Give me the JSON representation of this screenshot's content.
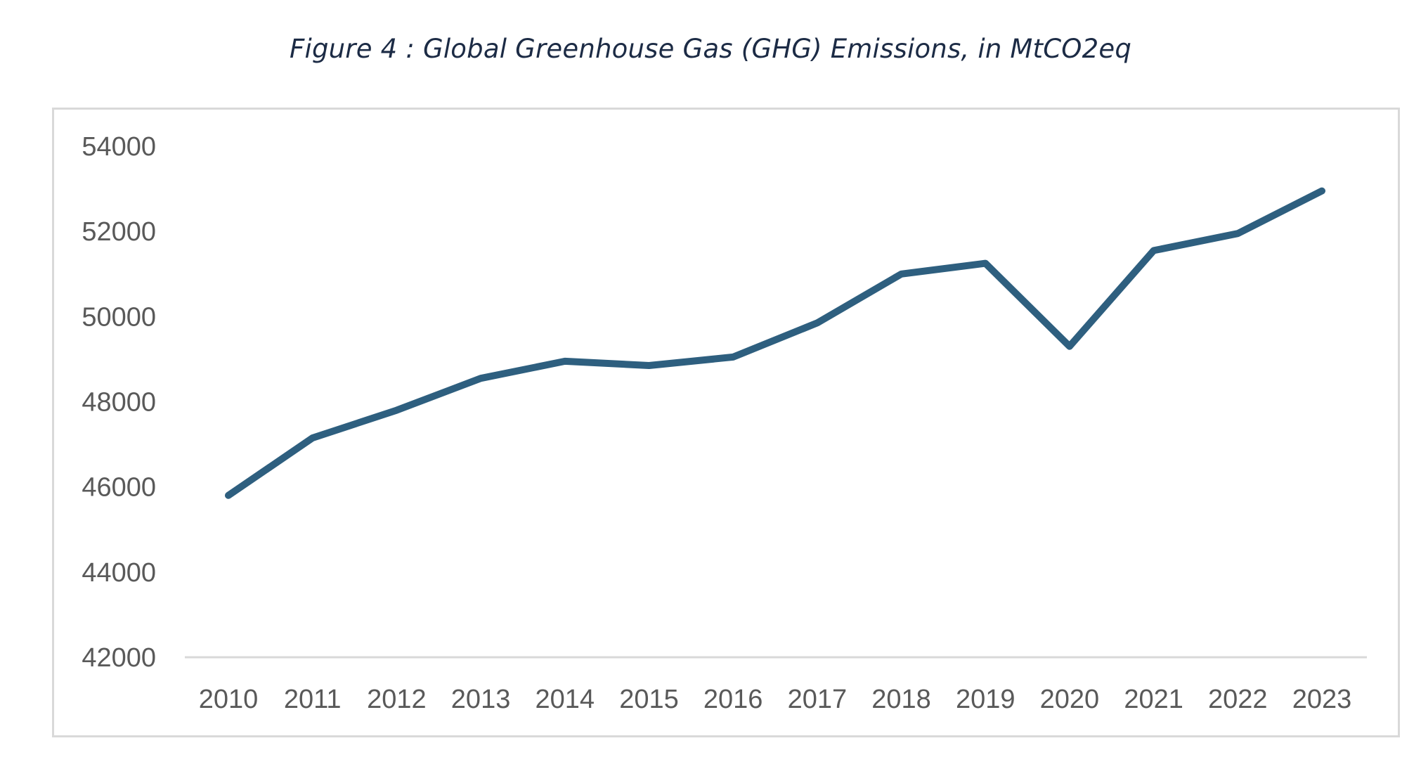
{
  "chart_data": {
    "type": "line",
    "title": "Figure 4 : Global Greenhouse Gas (GHG) Emissions, in MtCO2eq",
    "xlabel": "",
    "ylabel": "",
    "categories": [
      "2010",
      "2011",
      "2012",
      "2013",
      "2014",
      "2015",
      "2016",
      "2017",
      "2018",
      "2019",
      "2020",
      "2021",
      "2022",
      "2023"
    ],
    "series": [
      {
        "name": "Global GHG Emissions",
        "values": [
          45800,
          47150,
          47800,
          48550,
          48950,
          48850,
          49050,
          49850,
          51000,
          51250,
          49300,
          51550,
          51950,
          52950
        ],
        "color": "#2e5f7f"
      }
    ],
    "ylim": [
      42000,
      54000
    ],
    "yticks": [
      "42000",
      "44000",
      "46000",
      "48000",
      "50000",
      "52000",
      "54000"
    ],
    "grid": false,
    "axis_color": "#d9d9d9",
    "tick_color": "#595959"
  }
}
